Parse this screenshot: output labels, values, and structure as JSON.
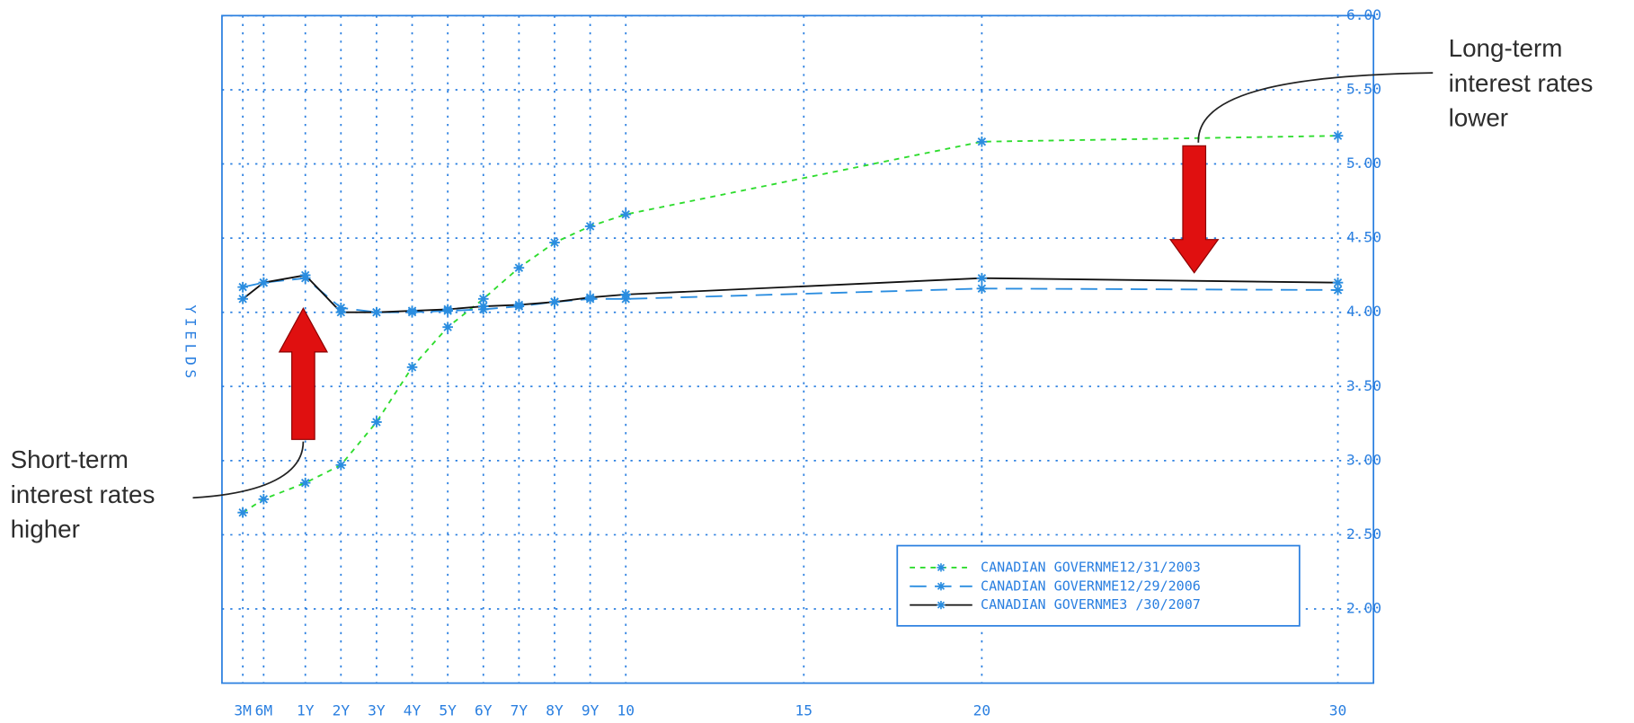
{
  "chart_data": {
    "type": "line",
    "y_label": "YIELDS",
    "x": [
      0.25,
      0.5,
      1,
      2,
      3,
      4,
      5,
      6,
      7,
      8,
      9,
      10,
      20,
      30
    ],
    "xlim": [
      0,
      31
    ],
    "xticks": [
      {
        "value": 0.25,
        "label": "3M"
      },
      {
        "value": 0.5,
        "label": "6M"
      },
      {
        "value": 1,
        "label": "1Y"
      },
      {
        "value": 2,
        "label": "2Y"
      },
      {
        "value": 3,
        "label": "3Y"
      },
      {
        "value": 4,
        "label": "4Y"
      },
      {
        "value": 5,
        "label": "5Y"
      },
      {
        "value": 6,
        "label": "6Y"
      },
      {
        "value": 7,
        "label": "7Y"
      },
      {
        "value": 8,
        "label": "8Y"
      },
      {
        "value": 9,
        "label": "9Y"
      },
      10,
      15,
      20,
      30
    ],
    "ylim": [
      1.5,
      6.0
    ],
    "yticks": [
      {
        "value": 2,
        "label": "2.00"
      },
      {
        "value": 2.5,
        "label": "2.50"
      },
      {
        "value": 3,
        "label": "3.00"
      },
      {
        "value": 3.5,
        "label": "3.50"
      },
      {
        "value": 4,
        "label": "4.00"
      },
      {
        "value": 4.5,
        "label": "4.50"
      },
      {
        "value": 5,
        "label": "5.00"
      },
      {
        "value": 5.5,
        "label": "5.50"
      },
      {
        "value": 6,
        "label": "6.00"
      }
    ],
    "grid": true,
    "y_axis_side": "right",
    "legend_position": "lower right",
    "marker_color": "#2a8de0",
    "series": [
      {
        "name": "CANADIAN GOVERNME12/31/2003",
        "color": "#2edc2e",
        "dash": "dotted",
        "values": [
          2.65,
          2.74,
          2.85,
          2.97,
          3.26,
          3.63,
          3.9,
          4.09,
          4.3,
          4.47,
          4.58,
          4.66,
          5.15,
          5.19
        ]
      },
      {
        "name": "CANADIAN GOVERNME12/29/2006",
        "color": "#2a8de0",
        "dash": "dashed",
        "values": [
          4.17,
          4.2,
          4.23,
          4.03,
          4.0,
          4.0,
          4.01,
          4.02,
          4.04,
          4.07,
          4.09,
          4.09,
          4.16,
          4.15
        ]
      },
      {
        "name": "CANADIAN GOVERNME3 /30/2007",
        "color": "#111111",
        "dash": "solid",
        "values": [
          4.09,
          4.2,
          4.25,
          4.0,
          4.0,
          4.01,
          4.02,
          4.04,
          4.05,
          4.07,
          4.1,
          4.12,
          4.23,
          4.2
        ]
      }
    ],
    "annotations": [
      {
        "lines": [
          "Short-term",
          "interest rates",
          "higher"
        ]
      },
      {
        "lines": [
          "Long-term",
          "interest rates",
          "lower"
        ]
      }
    ]
  }
}
